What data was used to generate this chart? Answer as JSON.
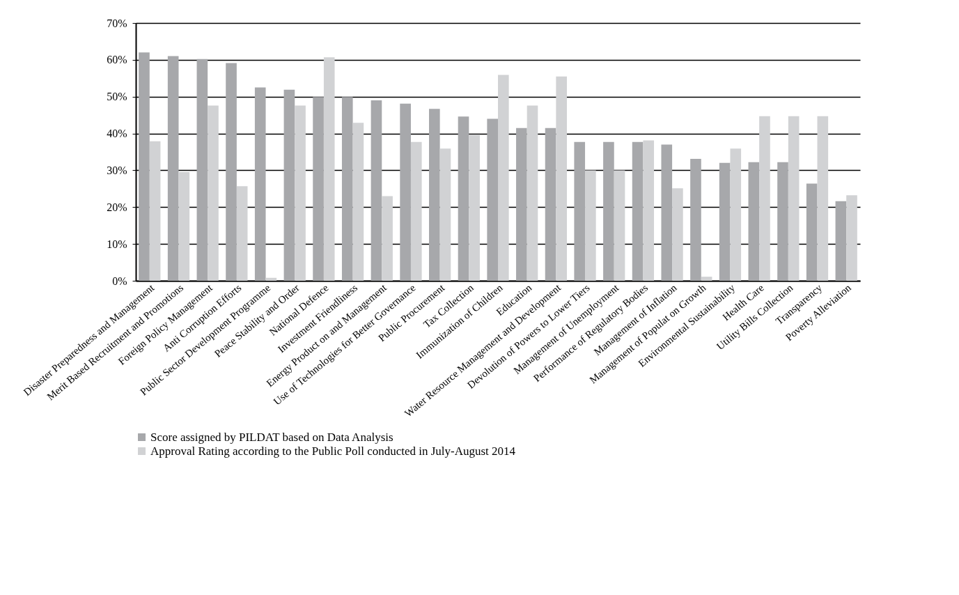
{
  "chart_data": {
    "type": "bar",
    "categories": [
      "Disaster Preparedness and Management",
      "Merit Based Recruitment and Promotions",
      "Foreign Policy Management",
      "Anti Corruption Efforts",
      "Public Sector Development Programme",
      "Peace Stability and Order",
      "National Defence",
      "Investment Friendliness",
      "Energy Product on and Management",
      "Use of Technologies for Better Governance",
      "Public Procurement",
      "Tax Collection",
      "Immunization of Children",
      "Education",
      "Water Resource Management and Development",
      "Devolution of Powers to Lower Tiers",
      "Management of Unemployment",
      "Performance of Regulatory Bodies",
      "Management of Inflation",
      "Management of Populat on Growth",
      "Environmental Sustainability",
      "Health Care",
      "Utility Bills Collection",
      "Transparency",
      "Poverty Alleviation"
    ],
    "series": [
      {
        "name": "Score assigned by PILDAT based on Data Analysis",
        "color": "#a7a8ab",
        "values": [
          62.0,
          61.0,
          60.2,
          59.1,
          52.5,
          51.9,
          49.9,
          49.9,
          49.0,
          48.1,
          46.7,
          44.6,
          44.0,
          41.5,
          41.5,
          37.7,
          37.7,
          37.7,
          37.0,
          33.1,
          32.0,
          32.2,
          32.2,
          26.4,
          21.6
        ]
      },
      {
        "name": "Approval Rating according to the Public Poll conducted in July-August 2014",
        "color": "#d1d2d4",
        "values": [
          37.9,
          29.5,
          47.6,
          25.7,
          0.8,
          47.6,
          60.7,
          42.9,
          23.0,
          37.7,
          35.9,
          39.7,
          55.9,
          47.6,
          55.5,
          30.0,
          30.0,
          38.1,
          25.1,
          1.1,
          35.9,
          44.7,
          44.7,
          44.7,
          23.2
        ]
      }
    ],
    "ylim": [
      0,
      70
    ],
    "yticks": [
      {
        "value": 0,
        "label": "0%"
      },
      {
        "value": 10,
        "label": "10%"
      },
      {
        "value": 20,
        "label": "20%"
      },
      {
        "value": 30,
        "label": "30%"
      },
      {
        "value": 40,
        "label": "40%"
      },
      {
        "value": 50,
        "label": "50%"
      },
      {
        "value": 60,
        "label": "60%"
      },
      {
        "value": 70,
        "label": "70%"
      }
    ],
    "grid": "y",
    "legend": "bottom"
  }
}
